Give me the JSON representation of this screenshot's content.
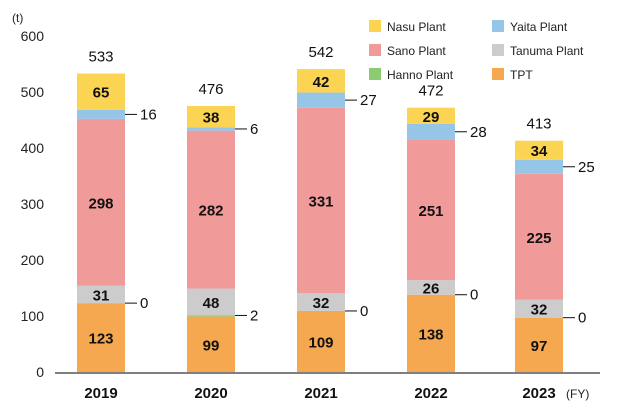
{
  "chart_data": {
    "type": "bar",
    "stacked": true,
    "unit_label": "(t)",
    "fy_label": "(FY)",
    "categories": [
      "2019",
      "2020",
      "2021",
      "2022",
      "2023"
    ],
    "ylim": [
      0,
      600
    ],
    "yticks": [
      0,
      100,
      200,
      300,
      400,
      500,
      600
    ],
    "grid": false,
    "legend_position": "top-right",
    "series": [
      {
        "name": "TPT",
        "color": "#F5A850",
        "values": [
          123,
          99,
          109,
          138,
          97
        ]
      },
      {
        "name": "Hanno Plant",
        "color": "#8CCB72",
        "values": [
          0,
          2,
          0,
          0,
          0
        ]
      },
      {
        "name": "Tanuma Plant",
        "color": "#CCCCCC",
        "values": [
          31,
          48,
          32,
          26,
          32
        ]
      },
      {
        "name": "Sano Plant",
        "color": "#F09A9A",
        "values": [
          298,
          282,
          331,
          251,
          225
        ]
      },
      {
        "name": "Yaita Plant",
        "color": "#95C6E8",
        "values": [
          16,
          6,
          27,
          28,
          25
        ]
      },
      {
        "name": "Nasu Plant",
        "color": "#FCD453",
        "values": [
          65,
          38,
          42,
          29,
          34
        ]
      }
    ],
    "totals": [
      533,
      476,
      542,
      472,
      413
    ],
    "callouts": [
      {
        "category": 0,
        "series": "Yaita Plant",
        "text": "16"
      },
      {
        "category": 1,
        "series": "Yaita Plant",
        "text": "6"
      },
      {
        "category": 2,
        "series": "Yaita Plant",
        "text": "27"
      },
      {
        "category": 3,
        "series": "Yaita Plant",
        "text": "28"
      },
      {
        "category": 4,
        "series": "Yaita Plant",
        "text": "25"
      },
      {
        "category": 0,
        "series": "Hanno Plant",
        "text": "0"
      },
      {
        "category": 1,
        "series": "Hanno Plant",
        "text": "2"
      },
      {
        "category": 2,
        "series": "Hanno Plant",
        "text": "0"
      },
      {
        "category": 3,
        "series": "Hanno Plant",
        "text": "0"
      },
      {
        "category": 4,
        "series": "Hanno Plant",
        "text": "0"
      }
    ],
    "legend_order": [
      "Nasu Plant",
      "Yaita Plant",
      "Sano Plant",
      "Tanuma Plant",
      "Hanno Plant",
      "TPT"
    ]
  }
}
